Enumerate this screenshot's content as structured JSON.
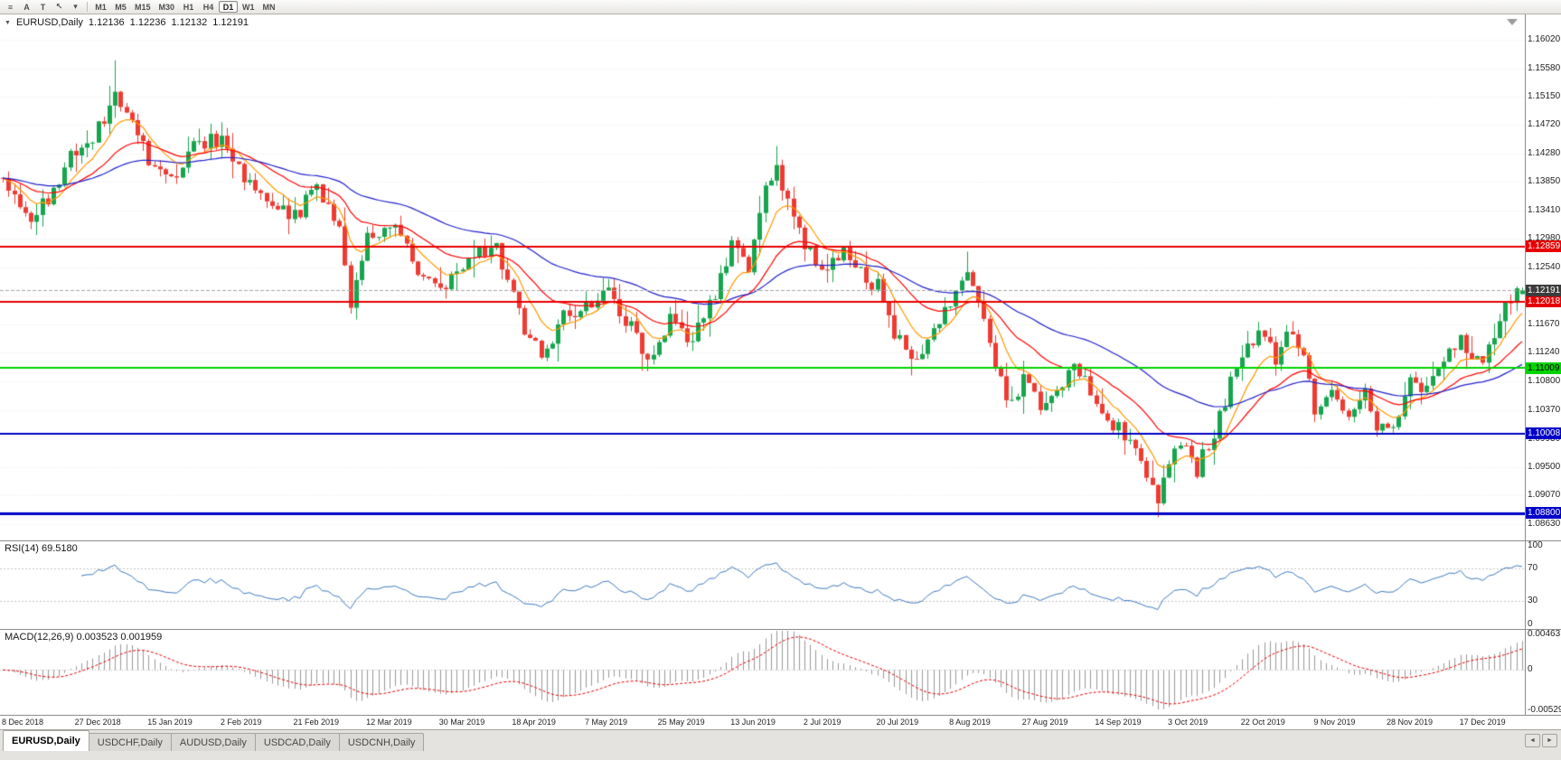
{
  "toolbar": {
    "icon_buttons": [
      {
        "name": "chart-list-icon",
        "glyph": "≡"
      },
      {
        "name": "annotation-tool-icon",
        "glyph": "A"
      },
      {
        "name": "text-tool-icon",
        "glyph": "T"
      },
      {
        "name": "cursor-tool-icon",
        "glyph": "↖"
      },
      {
        "name": "dropdown-caret-icon",
        "glyph": "▾"
      }
    ],
    "timeframes": [
      "M1",
      "M5",
      "M15",
      "M30",
      "H1",
      "H4",
      "D1",
      "W1",
      "MN"
    ],
    "active_timeframe": "D1"
  },
  "chart": {
    "symbol_period": "EURUSD,Daily",
    "open": "1.12136",
    "high": "1.12236",
    "low": "1.12132",
    "close": "1.12191"
  },
  "chart_data": {
    "type": "candlestick",
    "symbol": "EURUSD",
    "timeframe": "Daily",
    "num_candles": 272,
    "candles_per_label": 13,
    "x_labels": [
      "8 Dec 2018",
      "27 Dec 2018",
      "15 Jan 2019",
      "2 Feb 2019",
      "21 Feb 2019",
      "12 Mar 2019",
      "30 Mar 2019",
      "18 Apr 2019",
      "7 May 2019",
      "25 May 2019",
      "13 Jun 2019",
      "2 Jul 2019",
      "20 Jul 2019",
      "8 Aug 2019",
      "27 Aug 2019",
      "14 Sep 2019",
      "3 Oct 2019",
      "22 Oct 2019",
      "9 Nov 2019",
      "28 Nov 2019",
      "17 Dec 2019"
    ],
    "y_axis_ticks": [
      "1.16020",
      "1.15580",
      "1.15150",
      "1.14720",
      "1.14280",
      "1.13850",
      "1.13410",
      "1.12980",
      "1.12540",
      "1.12110",
      "1.11670",
      "1.11240",
      "1.10800",
      "1.10370",
      "1.09930",
      "1.09500",
      "1.09070",
      "1.08630"
    ],
    "y_range": [
      1.0838,
      1.164
    ],
    "colors": {
      "candle_up": "#17A54E",
      "candle_down": "#EE3B33"
    },
    "price_anchors": [
      [
        0,
        1.138
      ],
      [
        4,
        1.133
      ],
      [
        8,
        1.1355
      ],
      [
        13,
        1.1435
      ],
      [
        17,
        1.1465
      ],
      [
        20,
        1.152
      ],
      [
        23,
        1.149
      ],
      [
        26,
        1.1415
      ],
      [
        30,
        1.1385
      ],
      [
        34,
        1.1445
      ],
      [
        39,
        1.1448
      ],
      [
        44,
        1.1375
      ],
      [
        48,
        1.134
      ],
      [
        52,
        1.1335
      ],
      [
        56,
        1.137
      ],
      [
        60,
        1.131
      ],
      [
        62,
        1.1195
      ],
      [
        65,
        1.1295
      ],
      [
        70,
        1.132
      ],
      [
        74,
        1.1255
      ],
      [
        78,
        1.122
      ],
      [
        83,
        1.1265
      ],
      [
        88,
        1.129
      ],
      [
        93,
        1.1155
      ],
      [
        96,
        1.112
      ],
      [
        100,
        1.118
      ],
      [
        104,
        1.119
      ],
      [
        108,
        1.1225
      ],
      [
        112,
        1.116
      ],
      [
        115,
        1.111
      ],
      [
        119,
        1.1175
      ],
      [
        123,
        1.114
      ],
      [
        127,
        1.1215
      ],
      [
        130,
        1.1285
      ],
      [
        133,
        1.1245
      ],
      [
        136,
        1.1375
      ],
      [
        138,
        1.1398
      ],
      [
        141,
        1.133
      ],
      [
        143,
        1.1285
      ],
      [
        147,
        1.1255
      ],
      [
        150,
        1.1285
      ],
      [
        153,
        1.125
      ],
      [
        156,
        1.1225
      ],
      [
        159,
        1.115
      ],
      [
        162,
        1.1115
      ],
      [
        165,
        1.1145
      ],
      [
        169,
        1.1205
      ],
      [
        172,
        1.124
      ],
      [
        175,
        1.1165
      ],
      [
        178,
        1.1085
      ],
      [
        180,
        1.104
      ],
      [
        182,
        1.109
      ],
      [
        185,
        1.1035
      ],
      [
        188,
        1.1065
      ],
      [
        191,
        1.1105
      ],
      [
        194,
        1.107
      ],
      [
        198,
        1.1015
      ],
      [
        201,
        1.099
      ],
      [
        204,
        1.0935
      ],
      [
        206,
        1.0895
      ],
      [
        208,
        1.0965
      ],
      [
        211,
        1.0985
      ],
      [
        213,
        1.0945
      ],
      [
        216,
        1.1005
      ],
      [
        219,
        1.1075
      ],
      [
        221,
        1.113
      ],
      [
        224,
        1.1155
      ],
      [
        227,
        1.1115
      ],
      [
        230,
        1.116
      ],
      [
        232,
        1.111
      ],
      [
        234,
        1.1035
      ],
      [
        237,
        1.1065
      ],
      [
        240,
        1.1015
      ],
      [
        243,
        1.107
      ],
      [
        245,
        1.1015
      ],
      [
        248,
        1.1015
      ],
      [
        251,
        1.108
      ],
      [
        254,
        1.1065
      ],
      [
        257,
        1.1115
      ],
      [
        260,
        1.1145
      ],
      [
        263,
        1.1115
      ],
      [
        265,
        1.1125
      ],
      [
        267,
        1.1175
      ],
      [
        269,
        1.1205
      ],
      [
        271,
        1.12191
      ]
    ],
    "extremes": [
      {
        "index": 20,
        "price": 1.157,
        "type": "high"
      },
      {
        "index": 138,
        "price": 1.1412,
        "type": "high"
      },
      {
        "index": 206,
        "price": 1.0879,
        "type": "low"
      }
    ],
    "last_ohlc": [
      1.12136,
      1.12236,
      1.12132,
      1.12191
    ],
    "moving_averages": [
      {
        "period": 8,
        "color": "#FF9900"
      },
      {
        "period": 21,
        "color": "#FF0000"
      },
      {
        "period": 50,
        "color": "#2121CC"
      }
    ],
    "horizontal_levels": [
      {
        "price": 1.12859,
        "label": "1.12859",
        "color": "#E60000",
        "width": 2,
        "text_color": "#FFFFFF"
      },
      {
        "price": 1.12018,
        "label": "1.12018",
        "color": "#E60000",
        "width": 2,
        "text_color": "#FFFFFF"
      },
      {
        "price": 1.11009,
        "label": "1.11009",
        "color": "#00D400",
        "width": 2,
        "text_color": "#000000"
      },
      {
        "price": 1.10008,
        "label": "1.10008",
        "color": "#0000C8",
        "width": 2,
        "text_color": "#FFFFFF"
      },
      {
        "price": 1.088,
        "label": "1.08800",
        "color": "#0000C8",
        "width": 3,
        "text_color": "#FFFFFF"
      }
    ],
    "current_price_line": {
      "price": 1.12191,
      "label": "1.12191",
      "bg": "#3C3C3C"
    },
    "indicators": [
      {
        "name": "RSI",
        "label": "RSI(14) 69.5180",
        "params": [
          14
        ],
        "value": 69.518,
        "color": "#3E7BC0",
        "levels": [
          70,
          30
        ],
        "axis_ticks": [
          "100",
          "70",
          "30",
          "0"
        ],
        "range": [
          0,
          100
        ]
      },
      {
        "name": "MACD",
        "label": "MACD(12,26,9) 0.003523 0.001959",
        "params": [
          12,
          26,
          9
        ],
        "macd_value": 0.003523,
        "signal_value": 0.001959,
        "histogram_color": "#999999",
        "signal_color": "#E60000",
        "axis_ticks": [
          "0.00463",
          "0",
          "-0.00529"
        ],
        "range": [
          -0.0053,
          0.0047
        ]
      }
    ]
  },
  "tabs": {
    "items": [
      {
        "label": "EURUSD,Daily",
        "active": true
      },
      {
        "label": "USDCHF,Daily",
        "active": false
      },
      {
        "label": "AUDUSD,Daily",
        "active": false
      },
      {
        "label": "USDCAD,Daily",
        "active": false
      },
      {
        "label": "USDCNH,Daily",
        "active": false
      }
    ],
    "scroll_left_glyph": "◄",
    "scroll_right_glyph": "►"
  }
}
